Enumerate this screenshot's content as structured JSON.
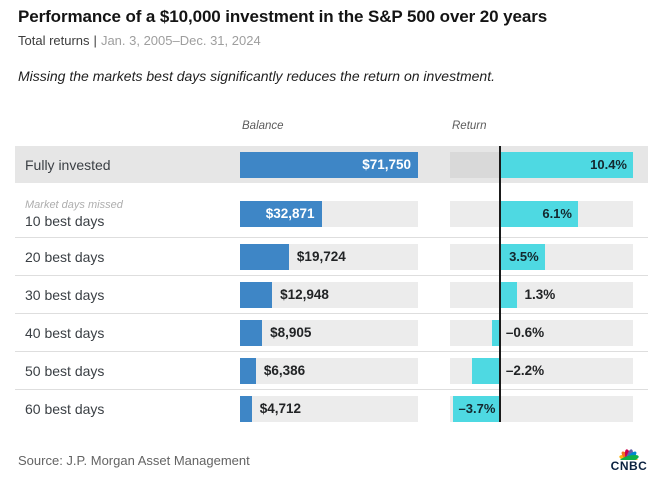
{
  "header": {
    "title": "Performance of a $10,000 investment in the S&P 500 over 20 years",
    "subtitle_left": "Total returns",
    "subtitle_sep": "|",
    "subtitle_right": "Jan. 3, 2005–Dec. 31, 2024",
    "insight": "Missing the markets best days significantly reduces the return on investment."
  },
  "chart_data": {
    "type": "bar",
    "orientation": "horizontal",
    "columns": {
      "balance": "Balance",
      "return": "Return"
    },
    "balance_axis": {
      "min": 0,
      "max": 71750
    },
    "return_axis": {
      "min": -3.9,
      "max": 10.4,
      "zero_line": true
    },
    "grid": false,
    "rows": [
      {
        "label": "Fully invested",
        "sublabel": "",
        "balance": 71750,
        "balance_label": "$71,750",
        "return_pct": 10.4,
        "return_label": "10.4%",
        "highlight": true,
        "balance_label_inside": true,
        "return_label_inside": true
      },
      {
        "label": "10 best days",
        "sublabel": "Market days missed",
        "balance": 32871,
        "balance_label": "$32,871",
        "return_pct": 6.1,
        "return_label": "6.1%",
        "highlight": false,
        "balance_label_inside": true,
        "return_label_inside": true
      },
      {
        "label": "20 best days",
        "sublabel": "",
        "balance": 19724,
        "balance_label": "$19,724",
        "return_pct": 3.5,
        "return_label": "3.5%",
        "highlight": false,
        "balance_label_inside": false,
        "return_label_inside": true
      },
      {
        "label": "30 best days",
        "sublabel": "",
        "balance": 12948,
        "balance_label": "$12,948",
        "return_pct": 1.3,
        "return_label": "1.3%",
        "highlight": false,
        "balance_label_inside": false,
        "return_label_inside": false
      },
      {
        "label": "40 best days",
        "sublabel": "",
        "balance": 8905,
        "balance_label": "$8,905",
        "return_pct": -0.6,
        "return_label": "–0.6%",
        "highlight": false,
        "balance_label_inside": false,
        "return_label_inside": false
      },
      {
        "label": "50 best days",
        "sublabel": "",
        "balance": 6386,
        "balance_label": "$6,386",
        "return_pct": -2.2,
        "return_label": "–2.2%",
        "highlight": false,
        "balance_label_inside": false,
        "return_label_inside": false
      },
      {
        "label": "60 best days",
        "sublabel": "",
        "balance": 4712,
        "balance_label": "$4,712",
        "return_pct": -3.7,
        "return_label": "–3.7%",
        "highlight": false,
        "balance_label_inside": false,
        "return_label_inside": true
      }
    ],
    "colors": {
      "balance_bar": "#3e86c6",
      "return_bar": "#4ed9e2",
      "highlight_row_bg": "#e6e6e6",
      "track": "#ececec",
      "track_highlight": "#d9d9d9",
      "axis_line": "#1a1a1a"
    }
  },
  "footer": {
    "source": "Source: J.P. Morgan Asset Management",
    "logo_text": "CNBC"
  }
}
